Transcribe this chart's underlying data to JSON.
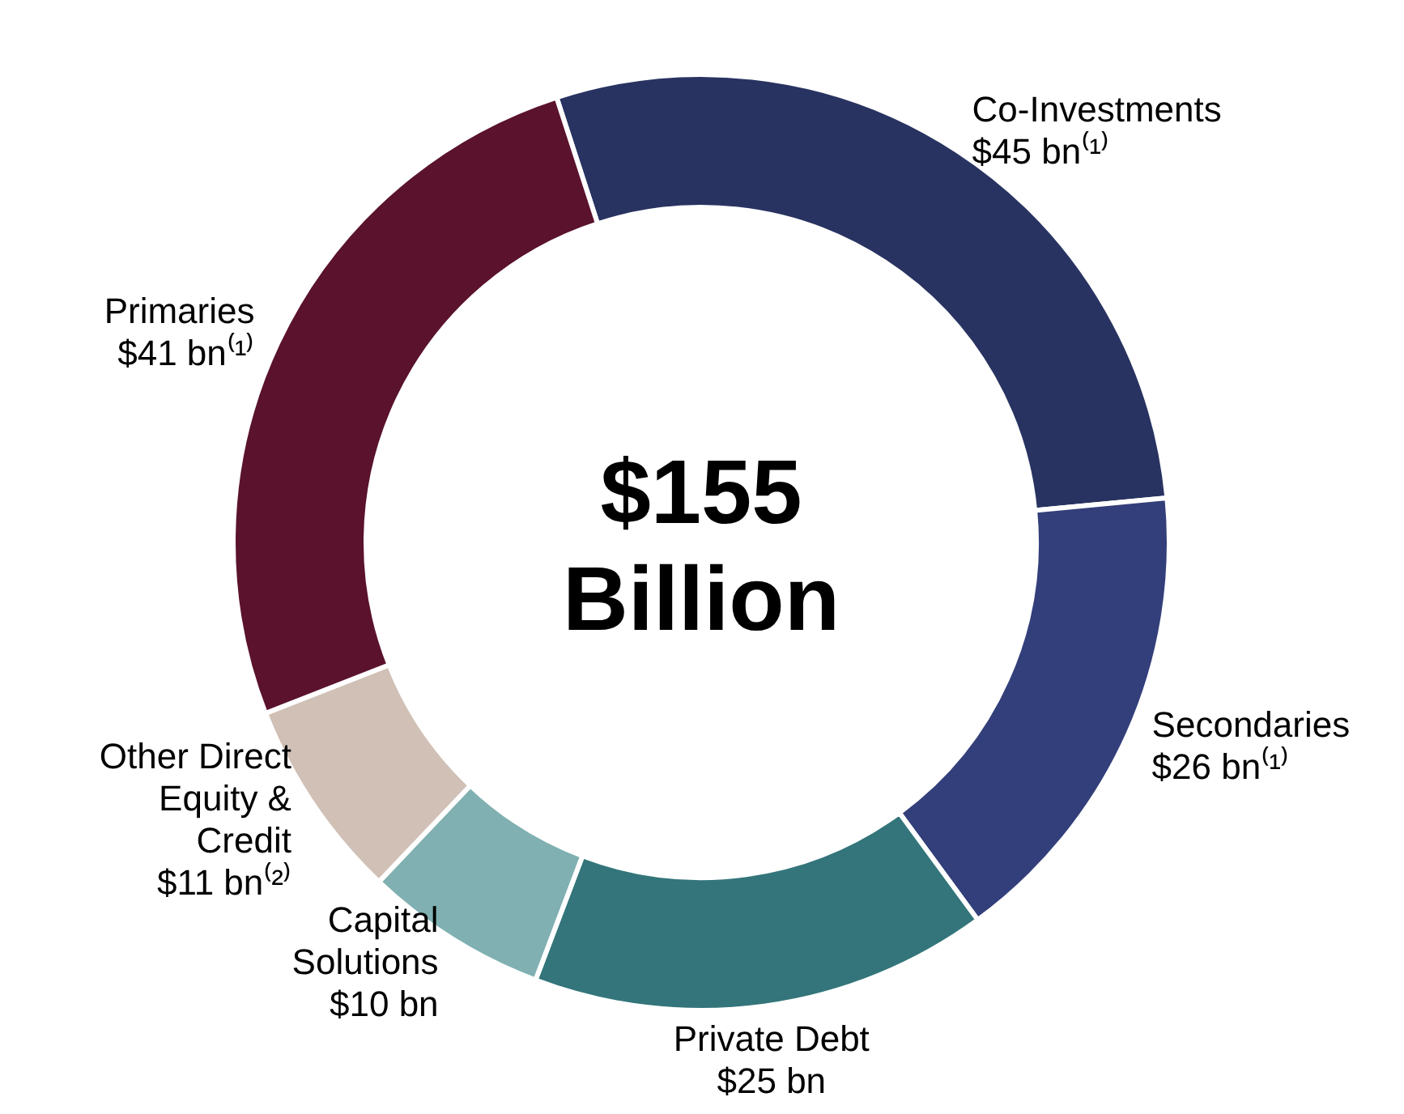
{
  "chart_data": {
    "type": "donut",
    "title": "$155 Billion",
    "categories": [
      "Co-Investments",
      "Secondaries",
      "Private Debt",
      "Capital Solutions",
      "Other Direct Equity & Credit",
      "Primaries"
    ],
    "values": [
      45,
      26,
      25,
      10,
      11,
      41
    ],
    "value_labels": [
      "$45 bn⁽¹⁾",
      "$26 bn⁽¹⁾",
      "$25 bn",
      "$10 bn",
      "$11 bn⁽²⁾",
      "$41 bn⁽¹⁾"
    ],
    "colors": [
      "#283361",
      "#333f7a",
      "#33757a",
      "#80b0b1",
      "#d0c0b6",
      "#5a122d"
    ]
  }
}
